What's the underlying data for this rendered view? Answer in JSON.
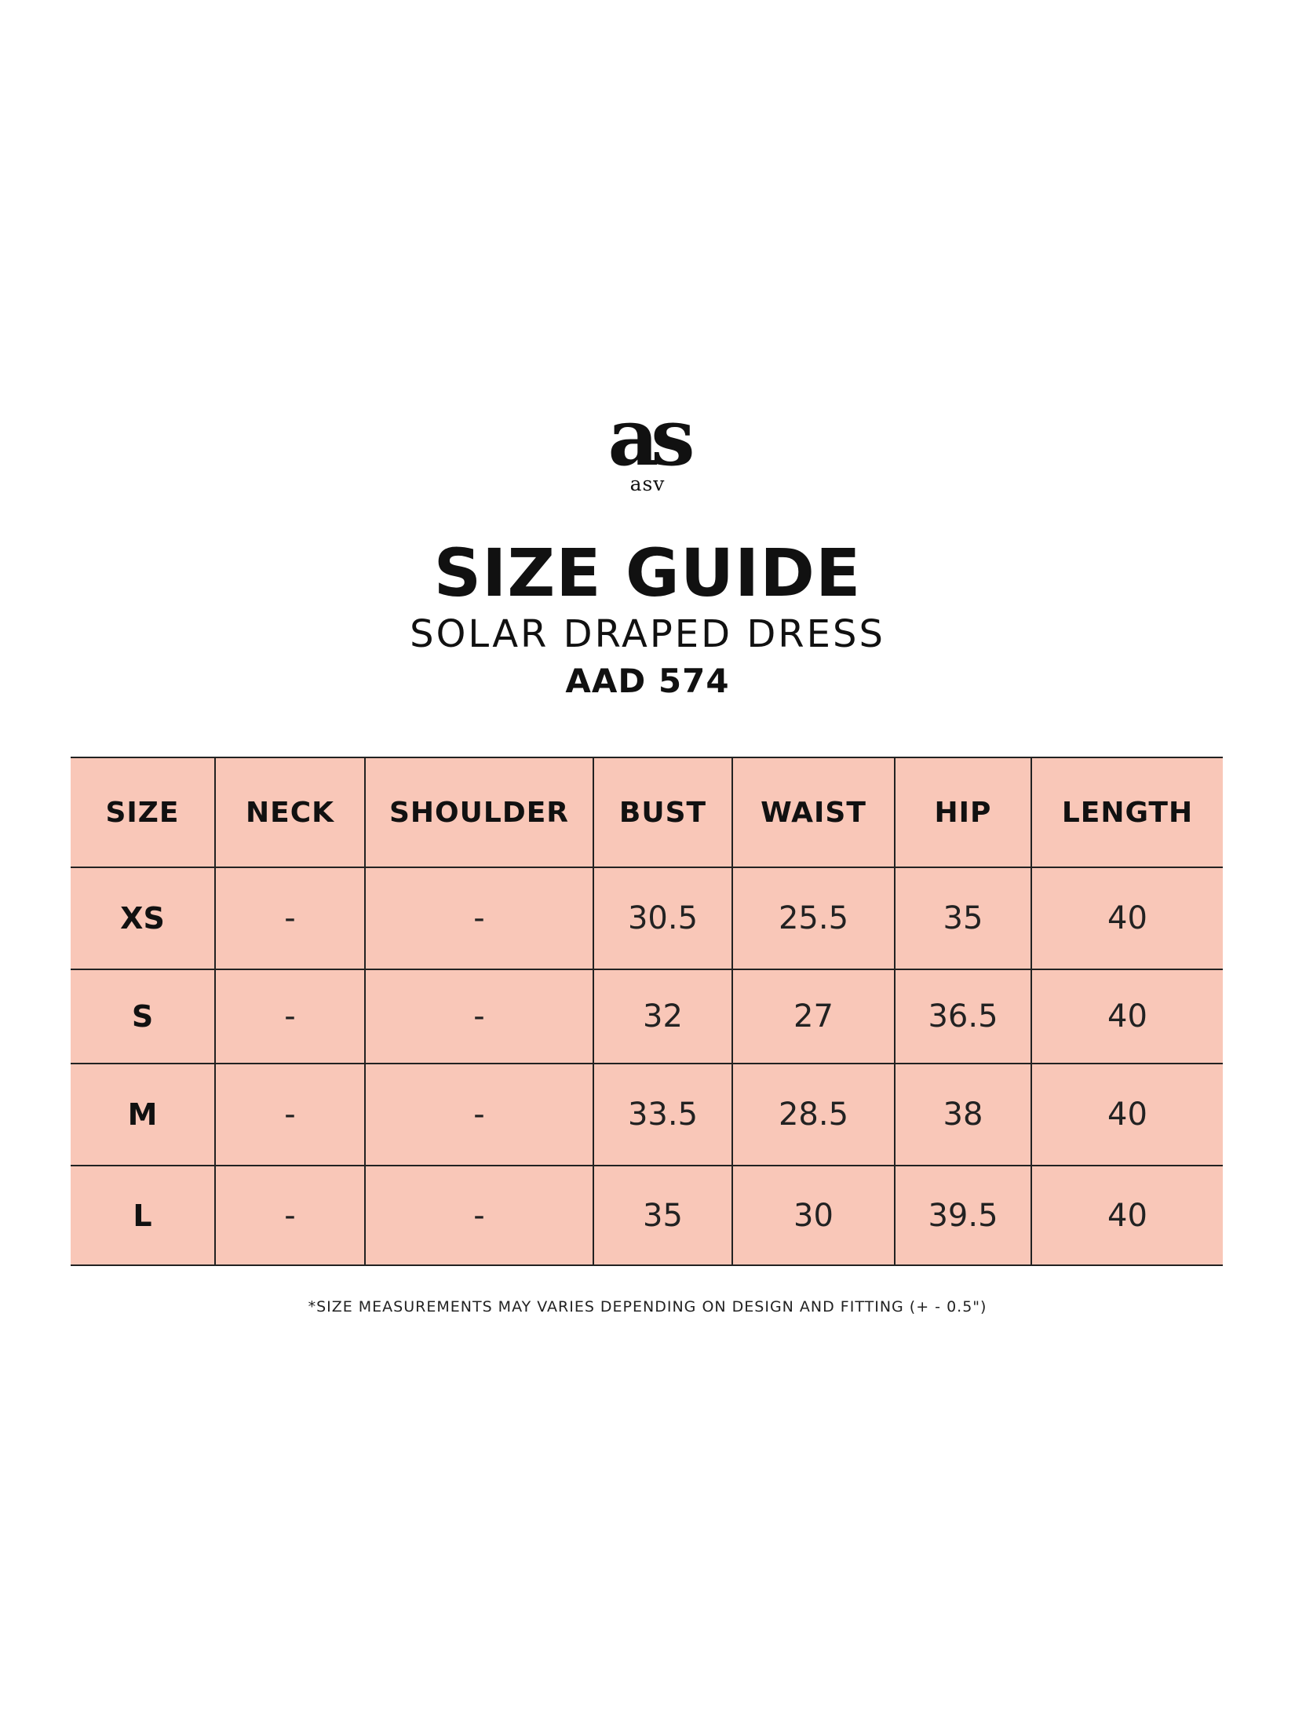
{
  "brand": {
    "monogram": "as",
    "wordmark": "asv"
  },
  "heading": {
    "title": "SIZE GUIDE",
    "subtitle": "SOLAR DRAPED DRESS",
    "code": "AAD 574"
  },
  "table": {
    "headers": [
      "SIZE",
      "NECK",
      "SHOULDER",
      "BUST",
      "WAIST",
      "HIP",
      "LENGTH"
    ],
    "rows": [
      [
        "XS",
        "-",
        "-",
        "30.5",
        "25.5",
        "35",
        "40"
      ],
      [
        "S",
        "-",
        "-",
        "32",
        "27",
        "36.5",
        "40"
      ],
      [
        "M",
        "-",
        "-",
        "33.5",
        "28.5",
        "38",
        "40"
      ],
      [
        "L",
        "-",
        "-",
        "35",
        "30",
        "39.5",
        "40"
      ]
    ]
  },
  "note": "*SIZE MEASUREMENTS MAY VARIES DEPENDING ON DESIGN AND FITTING (+ - 0.5\")",
  "colors": {
    "table_fill": "#f9c7b8",
    "border": "#222222",
    "text": "#111111"
  }
}
